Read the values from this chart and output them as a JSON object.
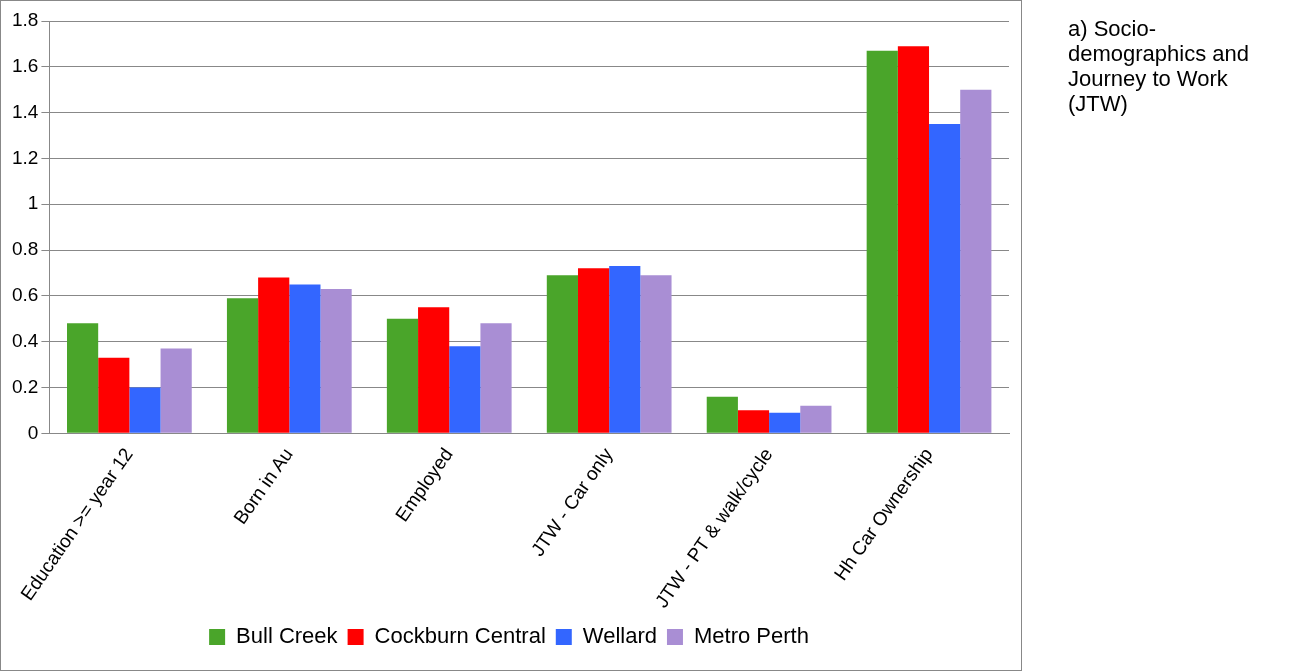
{
  "chart_data": {
    "type": "bar",
    "categories": [
      "Education >= year 12",
      "Born in Au",
      "Employed",
      "JTW - Car only",
      "JTW - PT & walk/cycle",
      "Hh Car Ownership"
    ],
    "series": [
      {
        "name": "Bull Creek",
        "color": "#4aa52a",
        "values": [
          0.48,
          0.59,
          0.5,
          0.69,
          0.16,
          1.67
        ]
      },
      {
        "name": "Cockburn Central",
        "color": "#ff0000",
        "values": [
          0.33,
          0.68,
          0.55,
          0.72,
          0.1,
          1.69
        ]
      },
      {
        "name": "Wellard",
        "color": "#3366ff",
        "values": [
          0.2,
          0.65,
          0.38,
          0.73,
          0.09,
          1.35
        ]
      },
      {
        "name": "Metro Perth",
        "color": "#a98ed4",
        "values": [
          0.37,
          0.63,
          0.48,
          0.69,
          0.12,
          1.5
        ]
      }
    ],
    "ylim": [
      0,
      1.8
    ],
    "yticks": [
      0,
      0.2,
      0.4,
      0.6,
      0.8,
      1,
      1.2,
      1.4,
      1.6,
      1.8
    ],
    "grid": "y",
    "legend": "bottom",
    "annotations": [
      "a)  Socio-demographics and Journey to Work (JTW)"
    ]
  }
}
